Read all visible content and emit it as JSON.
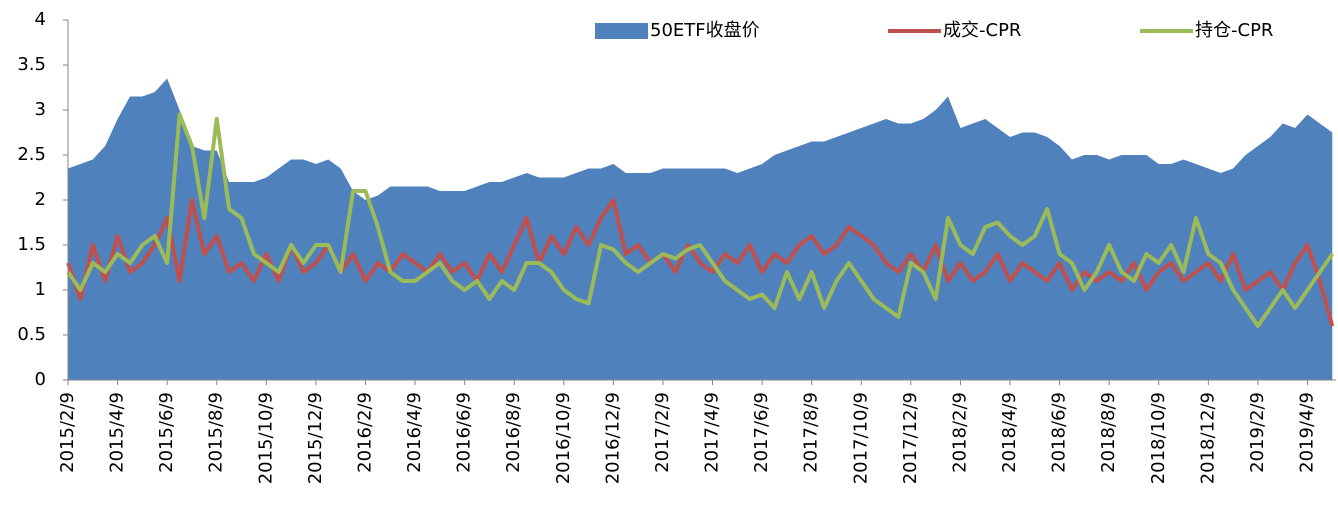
{
  "chart_data": {
    "type": "line",
    "categories": [
      "2015/2/9",
      null,
      null,
      null,
      "2015/4/9",
      null,
      null,
      null,
      "2015/6/9",
      null,
      null,
      null,
      "2015/8/9",
      null,
      null,
      null,
      "2015/10/9",
      null,
      null,
      null,
      "2015/12/9",
      null,
      null,
      null,
      "2016/2/9",
      null,
      null,
      null,
      "2016/4/9",
      null,
      null,
      null,
      "2016/6/9",
      null,
      null,
      null,
      "2016/8/9",
      null,
      null,
      null,
      "2016/10/9",
      null,
      null,
      null,
      "2016/12/9",
      null,
      null,
      null,
      "2017/2/9",
      null,
      null,
      null,
      "2017/4/9",
      null,
      null,
      null,
      "2017/6/9",
      null,
      null,
      null,
      "2017/8/9",
      null,
      null,
      null,
      "2017/10/9",
      null,
      null,
      null,
      "2017/12/9",
      null,
      null,
      null,
      "2018/2/9",
      null,
      null,
      null,
      "2018/4/9",
      null,
      null,
      null,
      "2018/6/9",
      null,
      null,
      null,
      "2018/8/9",
      null,
      null,
      null,
      "2018/10/9",
      null,
      null,
      null,
      "2018/12/9",
      null,
      null,
      null,
      "2019/2/9",
      null,
      null,
      null,
      "2019/4/9",
      null,
      null
    ],
    "series": [
      {
        "name": "50ETF收盘价",
        "type": "area",
        "color": "#4f81bd",
        "values": [
          2.35,
          2.4,
          2.45,
          2.6,
          2.9,
          3.15,
          3.15,
          3.2,
          3.35,
          3.0,
          2.6,
          2.55,
          2.55,
          2.2,
          2.2,
          2.2,
          2.25,
          2.35,
          2.45,
          2.45,
          2.4,
          2.45,
          2.35,
          2.1,
          2.0,
          2.05,
          2.15,
          2.15,
          2.15,
          2.15,
          2.1,
          2.1,
          2.1,
          2.15,
          2.2,
          2.2,
          2.25,
          2.3,
          2.25,
          2.25,
          2.25,
          2.3,
          2.35,
          2.35,
          2.4,
          2.3,
          2.3,
          2.3,
          2.35,
          2.35,
          2.35,
          2.35,
          2.35,
          2.35,
          2.3,
          2.35,
          2.4,
          2.5,
          2.55,
          2.6,
          2.65,
          2.65,
          2.7,
          2.75,
          2.8,
          2.85,
          2.9,
          2.85,
          2.85,
          2.9,
          3.0,
          3.15,
          2.8,
          2.85,
          2.9,
          2.8,
          2.7,
          2.75,
          2.75,
          2.7,
          2.6,
          2.45,
          2.5,
          2.5,
          2.45,
          2.5,
          2.5,
          2.5,
          2.4,
          2.4,
          2.45,
          2.4,
          2.35,
          2.3,
          2.35,
          2.5,
          2.6,
          2.7,
          2.85,
          2.8,
          2.95,
          2.85,
          2.75
        ]
      },
      {
        "name": "成交-CPR",
        "type": "line",
        "color": "#c0504d",
        "values": [
          1.3,
          0.9,
          1.5,
          1.1,
          1.6,
          1.2,
          1.3,
          1.5,
          1.8,
          1.1,
          2.0,
          1.4,
          1.6,
          1.2,
          1.3,
          1.1,
          1.4,
          1.1,
          1.5,
          1.2,
          1.3,
          1.5,
          1.2,
          1.4,
          1.1,
          1.3,
          1.2,
          1.4,
          1.3,
          1.2,
          1.4,
          1.2,
          1.3,
          1.1,
          1.4,
          1.2,
          1.5,
          1.8,
          1.3,
          1.6,
          1.4,
          1.7,
          1.5,
          1.8,
          2.0,
          1.4,
          1.5,
          1.3,
          1.4,
          1.2,
          1.5,
          1.3,
          1.2,
          1.4,
          1.3,
          1.5,
          1.2,
          1.4,
          1.3,
          1.5,
          1.6,
          1.4,
          1.5,
          1.7,
          1.6,
          1.5,
          1.3,
          1.2,
          1.4,
          1.2,
          1.5,
          1.1,
          1.3,
          1.1,
          1.2,
          1.4,
          1.1,
          1.3,
          1.2,
          1.1,
          1.3,
          1.0,
          1.2,
          1.1,
          1.2,
          1.1,
          1.3,
          1.0,
          1.2,
          1.3,
          1.1,
          1.2,
          1.3,
          1.1,
          1.4,
          1.0,
          1.1,
          1.2,
          1.0,
          1.3,
          1.5,
          1.1,
          0.6
        ]
      },
      {
        "name": "持仓-CPR",
        "type": "line",
        "color": "#9bbb59",
        "values": [
          1.2,
          1.0,
          1.3,
          1.2,
          1.4,
          1.3,
          1.5,
          1.6,
          1.3,
          2.95,
          2.6,
          1.8,
          2.9,
          1.9,
          1.8,
          1.4,
          1.3,
          1.2,
          1.5,
          1.3,
          1.5,
          1.5,
          1.2,
          2.1,
          2.1,
          1.7,
          1.2,
          1.1,
          1.1,
          1.2,
          1.3,
          1.1,
          1.0,
          1.1,
          0.9,
          1.1,
          1.0,
          1.3,
          1.3,
          1.2,
          1.0,
          0.9,
          0.85,
          1.5,
          1.45,
          1.3,
          1.2,
          1.3,
          1.4,
          1.35,
          1.45,
          1.5,
          1.3,
          1.1,
          1.0,
          0.9,
          0.95,
          0.8,
          1.2,
          0.9,
          1.2,
          0.8,
          1.1,
          1.3,
          1.1,
          0.9,
          0.8,
          0.7,
          1.3,
          1.2,
          0.9,
          1.8,
          1.5,
          1.4,
          1.7,
          1.75,
          1.6,
          1.5,
          1.6,
          1.9,
          1.4,
          1.3,
          1.0,
          1.2,
          1.5,
          1.2,
          1.1,
          1.4,
          1.3,
          1.5,
          1.2,
          1.8,
          1.4,
          1.3,
          1.0,
          0.8,
          0.6,
          0.8,
          1.0,
          0.8,
          1.0,
          1.2,
          1.4
        ]
      }
    ],
    "ylim": [
      0,
      4
    ],
    "yticks": [
      0,
      0.5,
      1,
      1.5,
      2,
      2.5,
      3,
      3.5,
      4
    ],
    "grid": false,
    "legend": "top"
  }
}
